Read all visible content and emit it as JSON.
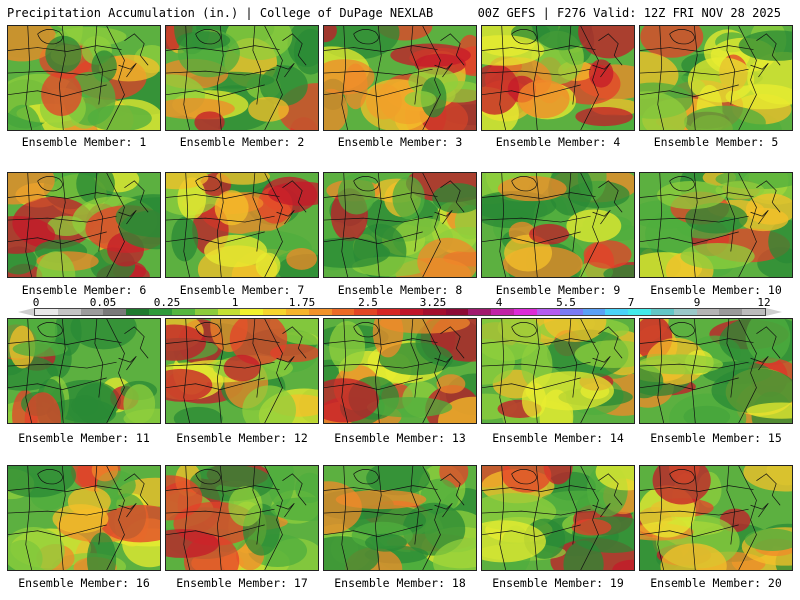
{
  "header": {
    "title_left": "Precipitation Accumulation (in.) | College of DuPage NEXLAB",
    "title_right": "00Z GEFS | F276 Valid: 12Z FRI NOV 28 2025"
  },
  "legend": {
    "labels": [
      "0",
      "0.05",
      "0.25",
      "1",
      "1.75",
      "2.5",
      "3.25",
      "4",
      "5.5",
      "7",
      "9",
      "12"
    ],
    "colors": [
      "#e8e8e8",
      "#c4c4c4",
      "#9c9c9c",
      "#7a7a7a",
      "#1f7a2e",
      "#2f9a3a",
      "#55b63f",
      "#8ccc3c",
      "#c4e034",
      "#f2f22e",
      "#f6d52c",
      "#f6b42a",
      "#f2922a",
      "#ec6a26",
      "#e24624",
      "#d52624",
      "#c0142a",
      "#a40e2e",
      "#8c0a36",
      "#a01a6e",
      "#c022a6",
      "#dc2ad8",
      "#b45af0",
      "#7a7af4",
      "#5aa0f6",
      "#4ad2f8",
      "#44eaea",
      "#62c6c6",
      "#9ac8c8",
      "#b4b4b4",
      "#9a9a9a",
      "#bcbcbc"
    ]
  },
  "members": [
    {
      "caption": "Ensemble Member: 1"
    },
    {
      "caption": "Ensemble Member: 2"
    },
    {
      "caption": "Ensemble Member: 3"
    },
    {
      "caption": "Ensemble Member: 4"
    },
    {
      "caption": "Ensemble Member: 5"
    },
    {
      "caption": "Ensemble Member: 6"
    },
    {
      "caption": "Ensemble Member: 7"
    },
    {
      "caption": "Ensemble Member: 8"
    },
    {
      "caption": "Ensemble Member: 9"
    },
    {
      "caption": "Ensemble Member: 10"
    },
    {
      "caption": "Ensemble Member: 11"
    },
    {
      "caption": "Ensemble Member: 12"
    },
    {
      "caption": "Ensemble Member: 13"
    },
    {
      "caption": "Ensemble Member: 14"
    },
    {
      "caption": "Ensemble Member: 15"
    },
    {
      "caption": "Ensemble Member: 16"
    },
    {
      "caption": "Ensemble Member: 17"
    },
    {
      "caption": "Ensemble Member: 18"
    },
    {
      "caption": "Ensemble Member: 19"
    },
    {
      "caption": "Ensemble Member: 20"
    }
  ]
}
